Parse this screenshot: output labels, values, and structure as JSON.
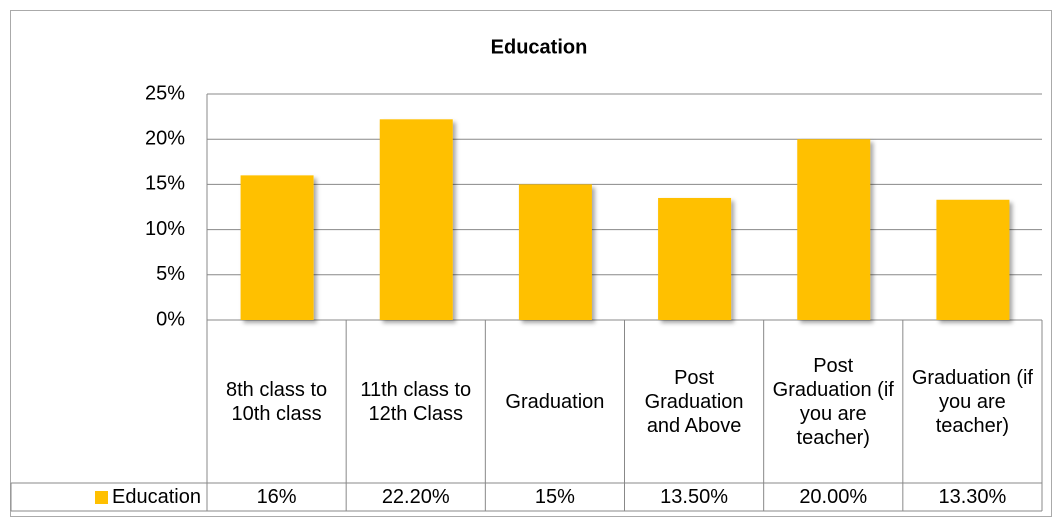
{
  "chart_data": {
    "type": "bar",
    "title": "Education",
    "categories": [
      "8th class to 10th class",
      "11th class to 12th Class",
      "Graduation",
      "Post Graduation and Above",
      "Post Graduation (if you are teacher)",
      "Graduation (if you are teacher)"
    ],
    "series": [
      {
        "name": "Education",
        "color": "#FFC000",
        "values": [
          16,
          22.2,
          15,
          13.5,
          20,
          13.3
        ],
        "value_labels": [
          "16%",
          "22.20%",
          "15%",
          "13.50%",
          "20.00%",
          "13.30%"
        ]
      }
    ],
    "ylim": [
      0,
      25
    ],
    "yticks": [
      {
        "value": 0,
        "label": "0%"
      },
      {
        "value": 5,
        "label": "5%"
      },
      {
        "value": 10,
        "label": "10%"
      },
      {
        "value": 15,
        "label": "15%"
      },
      {
        "value": 20,
        "label": "20%"
      },
      {
        "value": 25,
        "label": "25%"
      }
    ],
    "grid": true
  }
}
